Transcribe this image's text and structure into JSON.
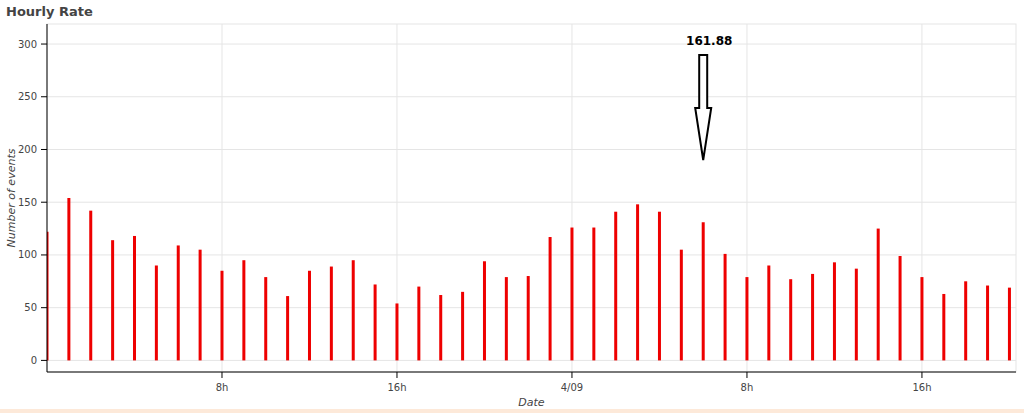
{
  "chart_data": {
    "type": "bar",
    "title": "Hourly Rate",
    "x_label": "Date",
    "y_label": "Number of events",
    "x": [
      0,
      1,
      2,
      3,
      4,
      5,
      6,
      7,
      8,
      9,
      10,
      11,
      12,
      13,
      14,
      15,
      16,
      17,
      18,
      19,
      20,
      21,
      22,
      23,
      24,
      25,
      26,
      27,
      28,
      29,
      30,
      31,
      32,
      33,
      34,
      35,
      36,
      37,
      38,
      39,
      40,
      41,
      42,
      43,
      44
    ],
    "values": [
      122,
      154,
      142,
      114,
      118,
      90,
      109,
      105,
      85,
      95,
      79,
      61,
      85,
      89,
      95,
      72,
      54,
      70,
      62,
      65,
      94,
      79,
      80,
      117,
      126,
      126,
      141,
      148,
      141,
      105,
      131,
      101,
      79,
      90,
      77,
      82,
      93,
      87,
      125,
      99,
      79,
      63,
      75,
      71,
      69
    ],
    "color": "#ee0000",
    "xlim": [
      0,
      44.3
    ],
    "xticks": [
      {
        "value": 8,
        "label": "8h"
      },
      {
        "value": 16,
        "label": "16h"
      },
      {
        "value": 24,
        "label": "4/09"
      },
      {
        "value": 32,
        "label": "8h"
      },
      {
        "value": 40,
        "label": "16h"
      }
    ],
    "ylim": [
      -11,
      319
    ],
    "yticks": [
      0,
      50,
      100,
      150,
      200,
      250,
      300
    ],
    "grid": true,
    "annotations": [
      {
        "text": "161.88",
        "x": 30
      }
    ]
  }
}
